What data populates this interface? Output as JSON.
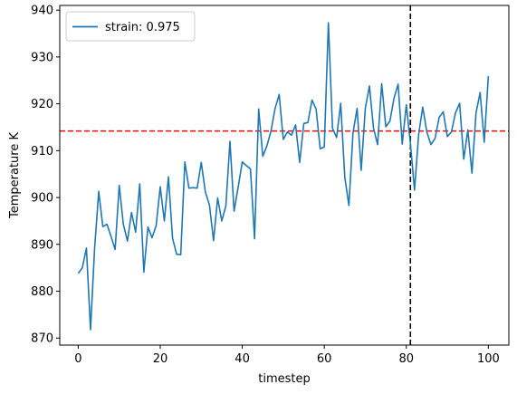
{
  "chart_data": {
    "type": "line",
    "title": "",
    "xlabel": "timestep",
    "ylabel": "Temperature K",
    "xlim": [
      -4.5,
      105
    ],
    "ylim": [
      868.5,
      941
    ],
    "xticks": [
      0,
      20,
      40,
      60,
      80,
      100
    ],
    "yticks": [
      870,
      880,
      890,
      900,
      910,
      920,
      930,
      940
    ],
    "grid": false,
    "legend_position": "upper-left",
    "series": [
      {
        "name": "strain: 0.975",
        "color": "#1f77b4",
        "x": [
          0,
          1,
          2,
          3,
          4,
          5,
          6,
          7,
          8,
          9,
          10,
          11,
          12,
          13,
          14,
          15,
          16,
          17,
          18,
          19,
          20,
          21,
          22,
          23,
          24,
          25,
          26,
          27,
          28,
          29,
          30,
          31,
          32,
          33,
          34,
          35,
          36,
          37,
          38,
          39,
          40,
          41,
          42,
          43,
          44,
          45,
          46,
          47,
          48,
          49,
          50,
          51,
          52,
          53,
          54,
          55,
          56,
          57,
          58,
          59,
          60,
          61,
          62,
          63,
          64,
          65,
          66,
          67,
          68,
          69,
          70,
          71,
          72,
          73,
          74,
          75,
          76,
          77,
          78,
          79,
          80,
          81,
          82,
          83,
          84,
          85,
          86,
          87,
          88,
          89,
          90,
          91,
          92,
          93,
          94,
          95,
          96,
          97,
          98,
          99,
          100
        ],
        "y": [
          883.8,
          885.0,
          889.2,
          871.8,
          889.2,
          901.3,
          893.8,
          894.3,
          891.7,
          888.9,
          902.6,
          894.3,
          890.7,
          896.8,
          892.6,
          902.9,
          884.1,
          893.7,
          891.4,
          894.0,
          902.3,
          895.0,
          904.4,
          891.3,
          887.9,
          887.8,
          907.6,
          902.0,
          902.1,
          902.0,
          907.5,
          901.2,
          898.4,
          890.8,
          899.9,
          895.0,
          898.2,
          912.0,
          897.1,
          902.2,
          907.6,
          906.8,
          906.1,
          891.2,
          918.9,
          908.8,
          911.0,
          914.2,
          919.0,
          922.0,
          912.4,
          914.0,
          913.3,
          915.5,
          907.5,
          915.8,
          916.0,
          920.8,
          918.9,
          910.4,
          910.8,
          937.3,
          914.8,
          912.8,
          920.1,
          904.3,
          898.3,
          913.8,
          919.0,
          905.8,
          919.0,
          923.8,
          914.8,
          911.3,
          924.3,
          915.1,
          916.3,
          921.2,
          924.2,
          911.4,
          919.8,
          911.5,
          901.6,
          913.4,
          919.3,
          914.0,
          911.3,
          912.6,
          917.1,
          918.3,
          913.0,
          914.0,
          918.1,
          920.1,
          908.2,
          914.4,
          905.2,
          918.1,
          922.4,
          911.8,
          925.9
        ]
      }
    ],
    "reference_lines": [
      {
        "orientation": "horizontal",
        "value": 914.2,
        "color": "#ff0000",
        "style": "dashed"
      },
      {
        "orientation": "vertical",
        "value": 81,
        "color": "#000000",
        "style": "dashed"
      }
    ]
  }
}
